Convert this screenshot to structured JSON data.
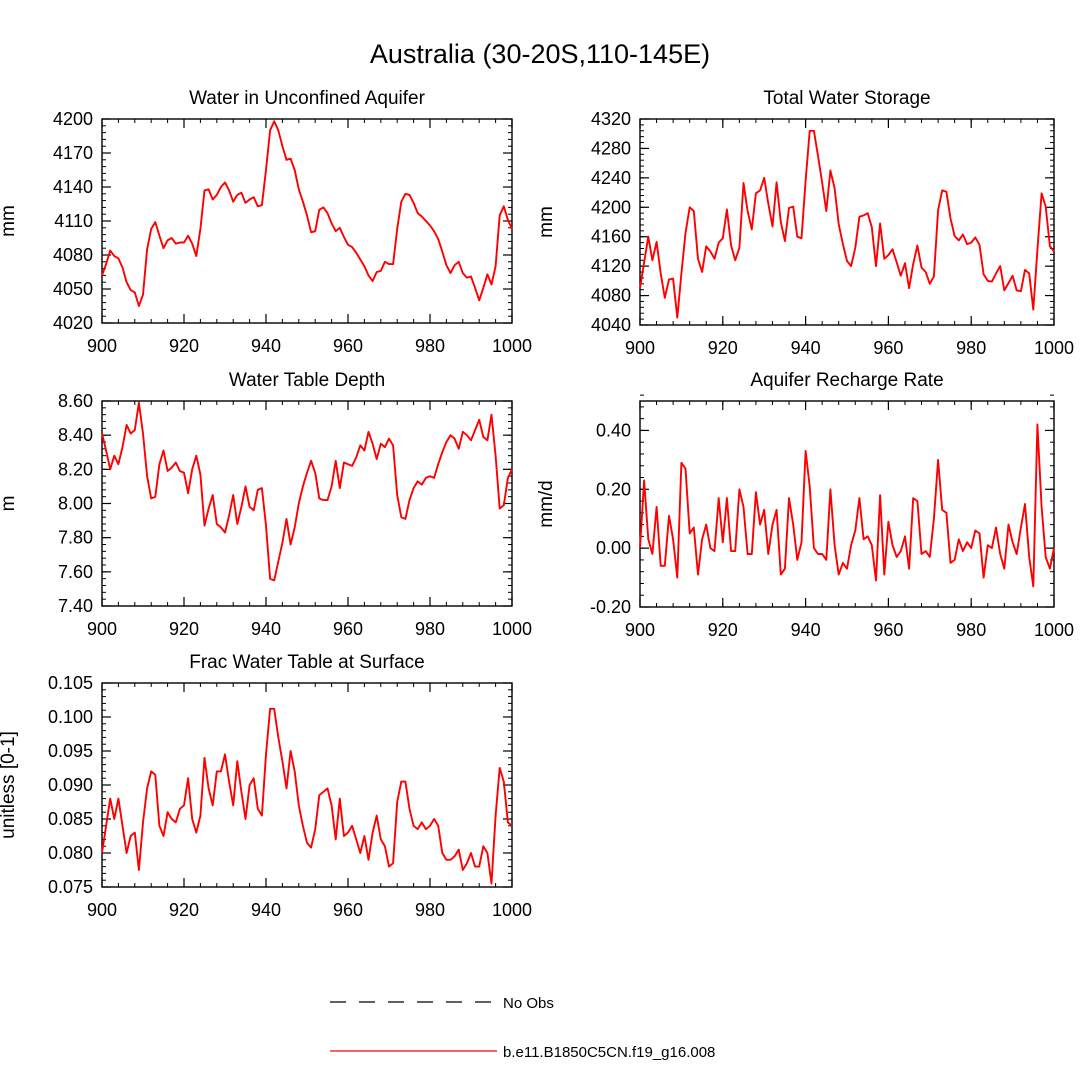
{
  "figure": {
    "title": "Australia (30-20S,110-145E)",
    "legend": [
      {
        "label": "No Obs",
        "style": "dashed",
        "color": "#000000"
      },
      {
        "label": "b.e11.B1850C5CN.f19_g16.008",
        "style": "solid",
        "color": "#ff0000"
      }
    ]
  },
  "chart_data": [
    {
      "type": "line",
      "title": "Water in Unconfined Aquifer",
      "xlabel": "",
      "ylabel": "mm",
      "xlim": [
        900,
        1000
      ],
      "ylim": [
        4020,
        4200
      ],
      "xticks": [
        900,
        920,
        940,
        960,
        980,
        1000
      ],
      "xtick_labels": [
        "900",
        "920",
        "940",
        "960",
        "980",
        "1000"
      ],
      "yticks": [
        4020,
        4050,
        4080,
        4110,
        4140,
        4170,
        4200
      ],
      "ytick_labels": [
        "4020",
        "4050",
        "4080",
        "4110",
        "4140",
        "4170",
        "4200"
      ],
      "yminor_step": 6,
      "series": [
        {
          "name": "b.e11.B1850C5CN.f19_g16.008",
          "color": "#ff0000",
          "x_start": 900,
          "values": [
            4062,
            4072,
            4084,
            4079,
            4077,
            4069,
            4056,
            4049,
            4047,
            4035,
            4045,
            4085,
            4103,
            4109,
            4097,
            4086,
            4093,
            4095,
            4090,
            4091,
            4091,
            4097,
            4090,
            4079,
            4103,
            4137,
            4138,
            4129,
            4133,
            4140,
            4144,
            4137,
            4127,
            4133,
            4135,
            4126,
            4129,
            4131,
            4123,
            4124,
            4155,
            4190,
            4198,
            4190,
            4176,
            4164,
            4165,
            4155,
            4138,
            4127,
            4115,
            4100,
            4101,
            4120,
            4122,
            4117,
            4108,
            4101,
            4104,
            4096,
            4089,
            4087,
            4082,
            4076,
            4070,
            4062,
            4057,
            4065,
            4066,
            4074,
            4072,
            4072,
            4103,
            4127,
            4134,
            4133,
            4126,
            4117,
            4114,
            4110,
            4106,
            4101,
            4094,
            4083,
            4071,
            4064,
            4071,
            4074,
            4064,
            4060,
            4061,
            4051,
            4040,
            4051,
            4063,
            4054,
            4070,
            4115,
            4123,
            4111,
            4103
          ]
        }
      ]
    },
    {
      "type": "line",
      "title": "Total Water Storage",
      "xlabel": "",
      "ylabel": "mm",
      "xlim": [
        900,
        1000
      ],
      "ylim": [
        4040,
        4320
      ],
      "xticks": [
        900,
        920,
        940,
        960,
        980,
        1000
      ],
      "xtick_labels": [
        "900",
        "920",
        "940",
        "960",
        "980",
        "1000"
      ],
      "yticks": [
        4040,
        4080,
        4120,
        4160,
        4200,
        4240,
        4280,
        4320
      ],
      "ytick_labels": [
        "4040",
        "4080",
        "4120",
        "4160",
        "4200",
        "4240",
        "4280",
        "4320"
      ],
      "yminor_step": 8,
      "series": [
        {
          "name": "b.e11.B1850C5CN.f19_g16.008",
          "color": "#ff0000",
          "x_start": 900,
          "values": [
            4090,
            4125,
            4160,
            4128,
            4153,
            4110,
            4077,
            4102,
            4103,
            4050,
            4110,
            4165,
            4200,
            4195,
            4130,
            4112,
            4147,
            4140,
            4130,
            4152,
            4158,
            4197,
            4148,
            4128,
            4145,
            4233,
            4195,
            4170,
            4219,
            4223,
            4240,
            4205,
            4174,
            4234,
            4180,
            4154,
            4199,
            4201,
            4160,
            4158,
            4236,
            4304,
            4304,
            4270,
            4233,
            4195,
            4250,
            4226,
            4177,
            4150,
            4127,
            4120,
            4145,
            4187,
            4189,
            4192,
            4173,
            4120,
            4178,
            4130,
            4135,
            4143,
            4125,
            4107,
            4124,
            4090,
            4123,
            4148,
            4118,
            4112,
            4096,
            4106,
            4196,
            4223,
            4221,
            4185,
            4161,
            4155,
            4163,
            4150,
            4152,
            4159,
            4149,
            4109,
            4100,
            4099,
            4110,
            4120,
            4087,
            4097,
            4107,
            4087,
            4086,
            4115,
            4110,
            4061,
            4142,
            4219,
            4201,
            4147,
            4140
          ]
        }
      ]
    },
    {
      "type": "line",
      "title": "Water Table Depth",
      "xlabel": "",
      "ylabel": "m",
      "xlim": [
        900,
        1000
      ],
      "ylim": [
        7.4,
        8.6
      ],
      "xticks": [
        900,
        920,
        940,
        960,
        980,
        1000
      ],
      "xtick_labels": [
        "900",
        "920",
        "940",
        "960",
        "980",
        "1000"
      ],
      "yticks": [
        7.4,
        7.6,
        7.8,
        8.0,
        8.2,
        8.4,
        8.6
      ],
      "ytick_labels": [
        "7.40",
        "7.60",
        "7.80",
        "8.00",
        "8.20",
        "8.40",
        "8.60"
      ],
      "yminor_step": 0.04,
      "series": [
        {
          "name": "b.e11.B1850C5CN.f19_g16.008",
          "color": "#ff0000",
          "x_start": 900,
          "values": [
            8.41,
            8.31,
            8.2,
            8.28,
            8.23,
            8.33,
            8.46,
            8.41,
            8.43,
            8.59,
            8.41,
            8.16,
            8.03,
            8.04,
            8.23,
            8.31,
            8.19,
            8.21,
            8.24,
            8.19,
            8.18,
            8.06,
            8.2,
            8.28,
            8.17,
            7.87,
            7.97,
            8.05,
            7.88,
            7.86,
            7.83,
            7.93,
            8.05,
            7.88,
            7.98,
            8.1,
            7.98,
            7.96,
            8.08,
            8.09,
            7.87,
            7.56,
            7.55,
            7.66,
            7.77,
            7.91,
            7.76,
            7.86,
            8.0,
            8.1,
            8.18,
            8.25,
            8.18,
            8.03,
            8.02,
            8.02,
            8.1,
            8.25,
            8.09,
            8.24,
            8.23,
            8.22,
            8.27,
            8.34,
            8.31,
            8.42,
            8.35,
            8.26,
            8.35,
            8.33,
            8.38,
            8.34,
            8.05,
            7.92,
            7.91,
            8.02,
            8.09,
            8.13,
            8.11,
            8.15,
            8.16,
            8.15,
            8.23,
            8.3,
            8.36,
            8.4,
            8.38,
            8.32,
            8.42,
            8.4,
            8.37,
            8.43,
            8.49,
            8.39,
            8.37,
            8.52,
            8.28,
            7.97,
            7.99,
            8.15,
            8.2
          ]
        }
      ]
    },
    {
      "type": "line",
      "title": "Aquifer Recharge Rate",
      "xlabel": "",
      "ylabel": "mm/d",
      "xlim": [
        900,
        1000
      ],
      "ylim": [
        -0.2,
        0.5
      ],
      "xticks": [
        900,
        920,
        940,
        960,
        980,
        1000
      ],
      "xtick_labels": [
        "900",
        "920",
        "940",
        "960",
        "980",
        "1000"
      ],
      "yticks": [
        -0.2,
        0.0,
        0.2,
        0.4
      ],
      "ytick_labels": [
        "-0.20",
        "0.00",
        "0.20",
        "0.40"
      ],
      "yminor_step": 0.04,
      "series": [
        {
          "name": "b.e11.B1850C5CN.f19_g16.008",
          "color": "#ff0000",
          "x_start": 900,
          "values": [
            0.0,
            0.23,
            0.03,
            -0.02,
            0.14,
            -0.06,
            -0.06,
            0.11,
            0.03,
            -0.1,
            0.29,
            0.27,
            0.05,
            0.07,
            -0.09,
            0.03,
            0.08,
            0.0,
            -0.01,
            0.17,
            0.02,
            0.17,
            -0.01,
            -0.01,
            0.2,
            0.14,
            -0.02,
            -0.02,
            0.19,
            0.08,
            0.13,
            -0.02,
            0.08,
            0.13,
            -0.09,
            -0.07,
            0.17,
            0.08,
            -0.04,
            0.02,
            0.33,
            0.21,
            0.0,
            -0.02,
            -0.02,
            -0.04,
            0.2,
            0.01,
            -0.09,
            -0.05,
            -0.07,
            0.01,
            0.06,
            0.17,
            0.03,
            0.04,
            0.01,
            -0.11,
            0.18,
            -0.09,
            0.09,
            0.01,
            -0.03,
            -0.01,
            0.04,
            -0.07,
            0.17,
            0.16,
            -0.02,
            -0.01,
            -0.03,
            0.1,
            0.3,
            0.13,
            0.12,
            -0.05,
            -0.04,
            0.03,
            -0.01,
            0.02,
            0.0,
            0.06,
            0.05,
            -0.1,
            0.01,
            0.0,
            0.07,
            -0.02,
            -0.07,
            0.08,
            0.02,
            -0.02,
            0.07,
            0.15,
            -0.03,
            -0.13,
            0.42,
            0.14,
            -0.03,
            -0.07,
            0.0
          ]
        }
      ]
    },
    {
      "type": "line",
      "title": "Frac Water Table at Surface",
      "xlabel": "",
      "ylabel": "unitless [0-1]",
      "xlim": [
        900,
        1000
      ],
      "ylim": [
        0.075,
        0.105
      ],
      "xticks": [
        900,
        920,
        940,
        960,
        980,
        1000
      ],
      "xtick_labels": [
        "900",
        "920",
        "940",
        "960",
        "980",
        "1000"
      ],
      "yticks": [
        0.075,
        0.08,
        0.085,
        0.09,
        0.095,
        0.1,
        0.105
      ],
      "ytick_labels": [
        "0.075",
        "0.080",
        "0.085",
        "0.090",
        "0.095",
        "0.100",
        "0.105"
      ],
      "yminor_step": 0.001,
      "series": [
        {
          "name": "b.e11.B1850C5CN.f19_g16.008",
          "color": "#ff0000",
          "x_start": 900,
          "values": [
            0.08,
            0.084,
            0.088,
            0.085,
            0.088,
            0.084,
            0.08,
            0.0825,
            0.083,
            0.0775,
            0.0845,
            0.0895,
            0.092,
            0.0915,
            0.084,
            0.0825,
            0.086,
            0.085,
            0.0845,
            0.0865,
            0.087,
            0.091,
            0.085,
            0.083,
            0.0855,
            0.094,
            0.0895,
            0.087,
            0.092,
            0.092,
            0.0945,
            0.0905,
            0.087,
            0.0935,
            0.089,
            0.085,
            0.09,
            0.091,
            0.0865,
            0.0855,
            0.0945,
            0.1012,
            0.1012,
            0.097,
            0.0935,
            0.0895,
            0.095,
            0.092,
            0.087,
            0.084,
            0.0815,
            0.0808,
            0.0835,
            0.0885,
            0.089,
            0.0895,
            0.087,
            0.082,
            0.088,
            0.0825,
            0.083,
            0.084,
            0.082,
            0.08,
            0.0825,
            0.079,
            0.083,
            0.0855,
            0.082,
            0.081,
            0.078,
            0.0785,
            0.0875,
            0.0905,
            0.0905,
            0.0865,
            0.084,
            0.0835,
            0.0845,
            0.0835,
            0.084,
            0.085,
            0.084,
            0.08,
            0.079,
            0.079,
            0.0795,
            0.0805,
            0.0775,
            0.0785,
            0.08,
            0.078,
            0.078,
            0.081,
            0.08,
            0.0755,
            0.0855,
            0.0925,
            0.0905,
            0.0845,
            0.084
          ]
        }
      ]
    }
  ]
}
